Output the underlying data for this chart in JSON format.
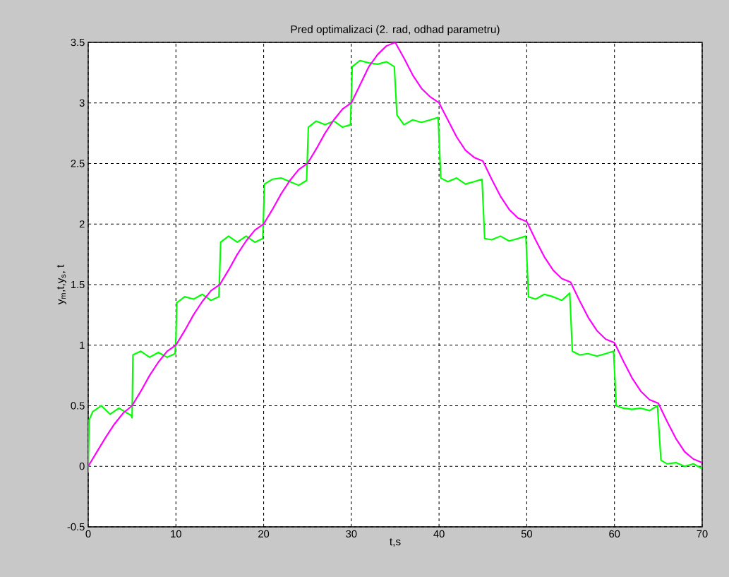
{
  "chart_data": {
    "type": "line",
    "title": "Pred optimalizaci (2. rad, odhad parametru)",
    "xlabel": "t,s",
    "ylabel": "y$_{m}$,t,y$_{s}$, t",
    "xlim": [
      0,
      70
    ],
    "ylim": [
      -0.5,
      3.5
    ],
    "xticks": [
      0,
      10,
      20,
      30,
      40,
      50,
      60,
      70
    ],
    "yticks": [
      -0.5,
      0,
      0.5,
      1,
      1.5,
      2,
      2.5,
      3,
      3.5
    ],
    "grid": true,
    "series": [
      {
        "color": "#00ff00",
        "x": [
          0,
          0.1,
          0.5,
          1.5,
          2.5,
          3.5,
          4.9,
          5,
          5.1,
          6,
          7,
          8,
          9,
          9.9,
          10,
          10.1,
          11,
          12,
          13,
          14,
          14.9,
          15.1,
          16,
          17,
          18,
          19,
          19.9,
          20.1,
          21,
          22,
          23,
          24,
          24.9,
          25.1,
          26,
          27,
          28,
          29,
          29.9,
          30.1,
          31,
          32,
          33,
          34,
          34.9,
          35.2,
          36,
          37,
          38,
          39,
          39.9,
          40.2,
          41,
          42,
          43,
          44,
          44.9,
          45.2,
          46,
          47,
          48,
          49,
          49.9,
          50.2,
          51,
          52,
          53,
          54,
          54.9,
          55.2,
          56,
          57,
          58,
          59,
          59.9,
          60.2,
          61,
          62,
          63,
          64,
          64.9,
          65.3,
          66,
          67,
          68,
          69,
          70
        ],
        "values": [
          -0.05,
          0.38,
          0.45,
          0.5,
          0.43,
          0.48,
          0.42,
          0.4,
          0.92,
          0.95,
          0.9,
          0.94,
          0.9,
          0.93,
          1.05,
          1.35,
          1.4,
          1.38,
          1.42,
          1.37,
          1.4,
          1.85,
          1.9,
          1.85,
          1.9,
          1.85,
          1.88,
          2.33,
          2.37,
          2.38,
          2.35,
          2.32,
          2.36,
          2.8,
          2.85,
          2.82,
          2.85,
          2.8,
          2.82,
          3.3,
          3.35,
          3.33,
          3.32,
          3.34,
          3.3,
          2.9,
          2.82,
          2.86,
          2.84,
          2.86,
          2.88,
          2.38,
          2.35,
          2.38,
          2.33,
          2.35,
          2.37,
          1.88,
          1.87,
          1.9,
          1.86,
          1.88,
          1.9,
          1.4,
          1.38,
          1.42,
          1.4,
          1.37,
          1.43,
          0.95,
          0.92,
          0.93,
          0.91,
          0.93,
          0.95,
          0.5,
          0.48,
          0.47,
          0.48,
          0.46,
          0.5,
          0.05,
          0.02,
          0.03,
          0.0,
          0.02,
          -0.02
        ]
      },
      {
        "color": "#ff00ff",
        "x": [
          0,
          1,
          2,
          3,
          4,
          5,
          6,
          7,
          8,
          9,
          10,
          11,
          12,
          13,
          14,
          15,
          16,
          17,
          18,
          19,
          20,
          21,
          22,
          23,
          24,
          25,
          26,
          27,
          28,
          29,
          30,
          31,
          32,
          33,
          34,
          35,
          36,
          37,
          38,
          39,
          40,
          41,
          42,
          43,
          44,
          45,
          46,
          47,
          48,
          49,
          50,
          51,
          52,
          53,
          54,
          55,
          56,
          57,
          58,
          59,
          60,
          61,
          62,
          63,
          64,
          65,
          66,
          67,
          68,
          69,
          70
        ],
        "values": [
          0,
          0.12,
          0.24,
          0.35,
          0.44,
          0.5,
          0.62,
          0.75,
          0.86,
          0.95,
          1.0,
          1.12,
          1.25,
          1.36,
          1.45,
          1.5,
          1.62,
          1.75,
          1.86,
          1.95,
          2.0,
          2.12,
          2.25,
          2.36,
          2.45,
          2.5,
          2.62,
          2.75,
          2.86,
          2.95,
          3.0,
          3.15,
          3.3,
          3.4,
          3.47,
          3.5,
          3.37,
          3.23,
          3.12,
          3.05,
          3.0,
          2.86,
          2.72,
          2.61,
          2.55,
          2.52,
          2.37,
          2.23,
          2.12,
          2.05,
          2.02,
          1.87,
          1.73,
          1.62,
          1.55,
          1.52,
          1.37,
          1.23,
          1.12,
          1.05,
          1.02,
          0.87,
          0.73,
          0.62,
          0.55,
          0.52,
          0.37,
          0.23,
          0.12,
          0.06,
          0.03
        ]
      }
    ]
  }
}
